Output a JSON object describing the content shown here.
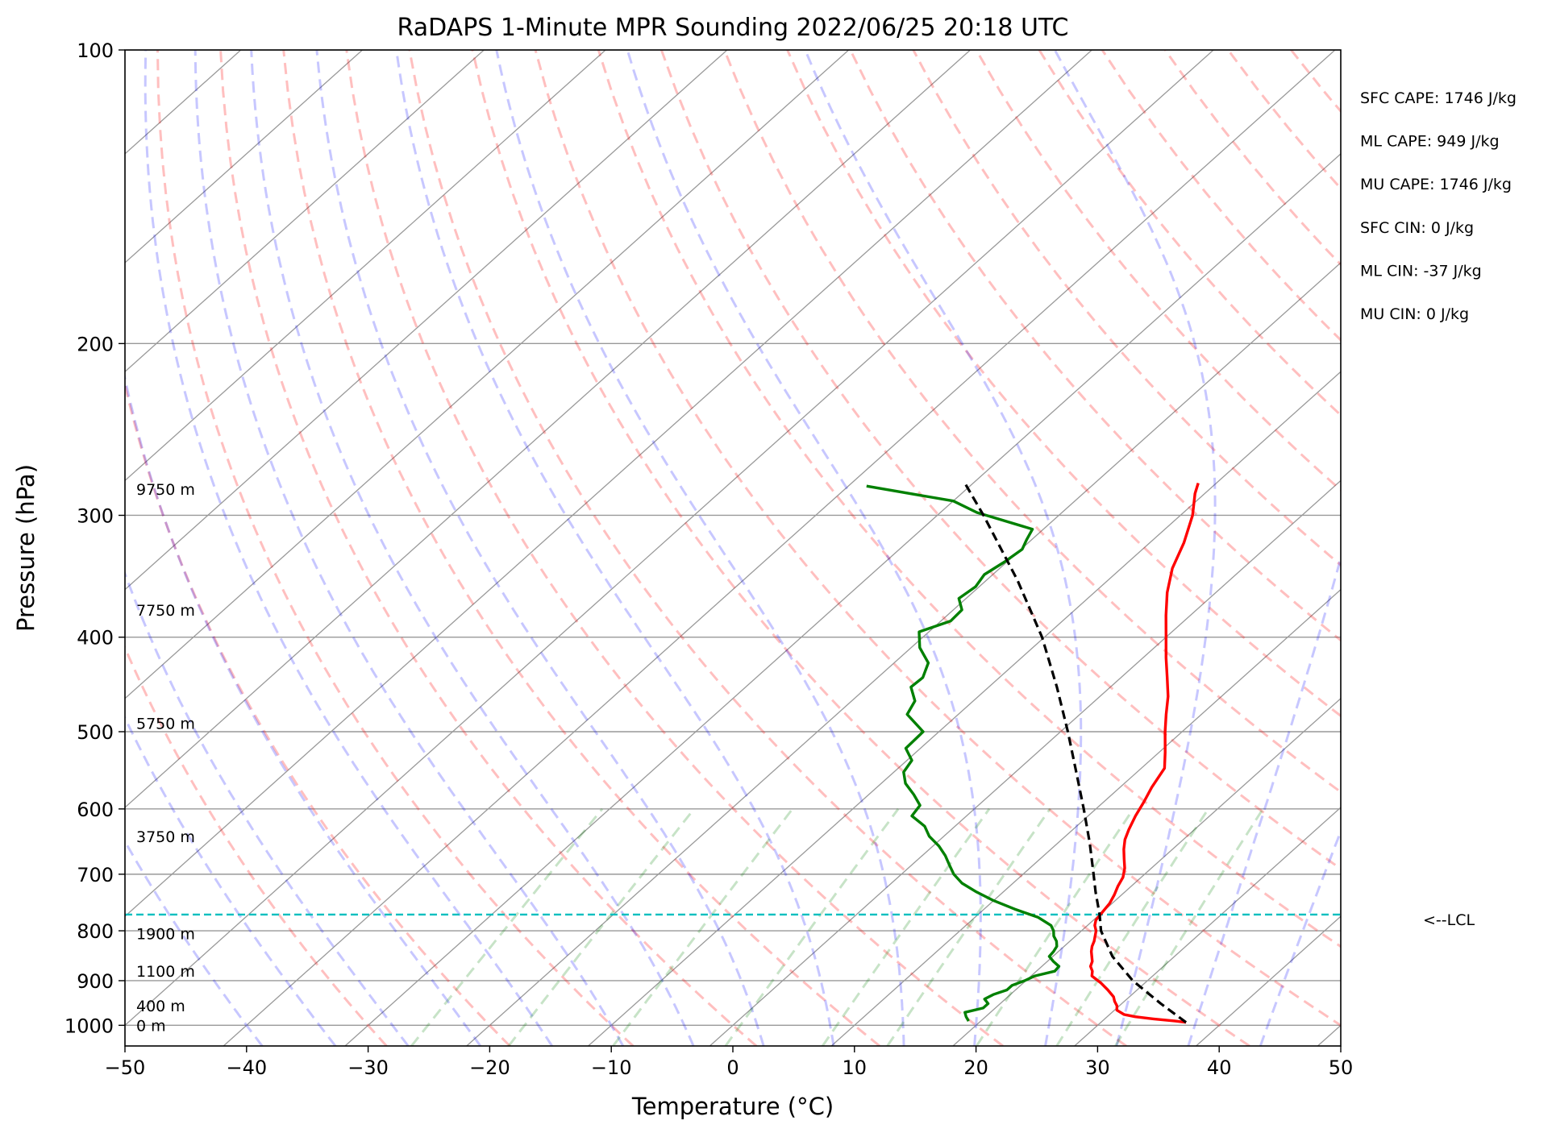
{
  "chart_data": {
    "type": "skew-t log-p",
    "title": "RaDAPS 1-Minute MPR Sounding 2022/06/25 20:18 UTC",
    "xlabel": "Temperature (°C)",
    "ylabel": "Pressure (hPa)",
    "xlim": [
      -50,
      50
    ],
    "ylim": [
      1050,
      100
    ],
    "x_ticks": [
      "−50",
      "−40",
      "−30",
      "−20",
      "−10",
      "0",
      "10",
      "20",
      "30",
      "40",
      "50"
    ],
    "x_tick_values": [
      -50,
      -40,
      -30,
      -20,
      -10,
      0,
      10,
      20,
      30,
      40,
      50
    ],
    "y_ticks": [
      "100",
      "200",
      "300",
      "400",
      "500",
      "600",
      "700",
      "800",
      "900",
      "1000"
    ],
    "y_tick_values": [
      100,
      200,
      300,
      400,
      500,
      600,
      700,
      800,
      900,
      1000
    ],
    "grid": true,
    "series": [
      {
        "role": "temperature",
        "color": "#ff0000",
        "p": [
          993,
          990,
          985,
          980,
          975,
          965,
          955,
          945,
          935,
          920,
          905,
          890,
          880,
          870,
          860,
          850,
          840,
          830,
          820,
          810,
          800,
          790,
          780,
          765,
          750,
          735,
          720,
          705,
          690,
          675,
          660,
          645,
          630,
          610,
          590,
          570,
          545,
          525,
          500,
          480,
          460,
          440,
          420,
          400,
          380,
          360,
          340,
          320,
          300,
          285,
          278
        ],
        "t": [
          37.0,
          36.0,
          34.0,
          32.3,
          31.2,
          30.2,
          29.8,
          29.2,
          28.7,
          27.6,
          26.4,
          25.0,
          24.6,
          24.0,
          23.7,
          23.2,
          22.7,
          22.3,
          22.0,
          21.6,
          21.2,
          20.6,
          20.2,
          20.0,
          19.8,
          19.4,
          18.9,
          18.5,
          17.8,
          16.9,
          16.0,
          15.2,
          14.6,
          13.9,
          13.3,
          12.6,
          11.9,
          10.5,
          8.6,
          7.1,
          5.6,
          3.8,
          1.9,
          0.0,
          -2.0,
          -4.0,
          -5.8,
          -7.2,
          -9.0,
          -10.8,
          -11.5
        ]
      },
      {
        "role": "dewpoint",
        "color": "#008000",
        "p": [
          990,
          980,
          970,
          960,
          950,
          940,
          930,
          920,
          910,
          900,
          890,
          880,
          870,
          860,
          850,
          840,
          830,
          820,
          810,
          800,
          790,
          775,
          760,
          745,
          730,
          715,
          700,
          685,
          670,
          655,
          640,
          625,
          610,
          595,
          580,
          565,
          550,
          535,
          520,
          500,
          480,
          465,
          450,
          440,
          425,
          410,
          395,
          385,
          375,
          365,
          355,
          345,
          335,
          325,
          318,
          310,
          298,
          290,
          280
        ],
        "t": [
          19.0,
          18.4,
          17.9,
          19.0,
          19.0,
          18.3,
          18.6,
          19.3,
          19.3,
          19.9,
          20.3,
          21.5,
          21.4,
          20.5,
          19.7,
          19.6,
          19.4,
          18.9,
          18.2,
          17.7,
          17.0,
          15.2,
          12.5,
          10.0,
          7.8,
          5.8,
          4.3,
          3.1,
          1.9,
          0.5,
          -1.2,
          -2.5,
          -4.5,
          -4.8,
          -6.3,
          -8.0,
          -9.2,
          -9.6,
          -11.2,
          -11.3,
          -14.2,
          -14.8,
          -16.4,
          -16.3,
          -17.2,
          -19.3,
          -20.8,
          -19.2,
          -19.3,
          -20.6,
          -20.3,
          -20.7,
          -20.2,
          -19.9,
          -20.4,
          -20.9,
          -27.0,
          -30.0,
          -38.5
        ]
      },
      {
        "role": "parcel",
        "color": "#000000",
        "p": [
          993,
          950,
          900,
          850,
          800,
          770,
          730,
          700,
          650,
          600,
          550,
          500,
          450,
          400,
          350,
          300,
          278
        ],
        "t": [
          37.0,
          33.2,
          28.8,
          24.9,
          21.6,
          20.0,
          17.6,
          15.8,
          12.6,
          9.0,
          5.0,
          0.6,
          -4.4,
          -10.2,
          -17.4,
          -26.2,
          -30.7
        ]
      }
    ],
    "lcl": {
      "p": 770,
      "label": "<--LCL"
    },
    "height_labels": [
      {
        "text": "0 m",
        "p": 1000
      },
      {
        "text": "400 m",
        "p": 955
      },
      {
        "text": "1100 m",
        "p": 880
      },
      {
        "text": "1900 m",
        "p": 805
      },
      {
        "text": "3750 m",
        "p": 640
      },
      {
        "text": "5750 m",
        "p": 490
      },
      {
        "text": "7750 m",
        "p": 375
      },
      {
        "text": "9750 m",
        "p": 282
      }
    ],
    "indices": [
      "SFC CAPE: 1746 J/kg",
      "ML CAPE: 949 J/kg",
      "MU CAPE: 1746 J/kg",
      "SFC CIN: 0 J/kg",
      "ML CIN: -37 J/kg",
      "MU CIN: 0 J/kg"
    ],
    "colors": {
      "isotherm": "#999999",
      "dry_adiabat": "#ff0000",
      "moist_adiabat": "#0000ff",
      "mixing_ratio": "#008000",
      "lcl_line": "#00bfbf"
    }
  }
}
